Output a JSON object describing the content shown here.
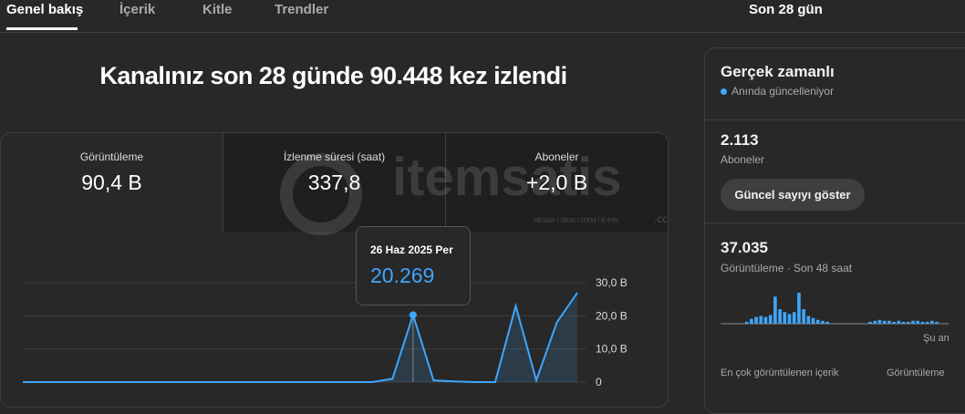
{
  "tabs": [
    "Genel bakış",
    "İçerik",
    "Kitle",
    "Trendler"
  ],
  "period": "Son 28 gün",
  "headline": "Kanalınız son 28 günde 90.448 kez izlendi",
  "watermark": {
    "brand": "itemsatis",
    "tagline": "HESAP / SKIN / ITEM / E-PIN",
    "suffix": ".com"
  },
  "metrics": [
    {
      "label": "Görüntüleme",
      "value": "90,4 B"
    },
    {
      "label": "İzlenme süresi (saat)",
      "value": "337,8"
    },
    {
      "label": "Aboneler",
      "value": "+2,0 B"
    }
  ],
  "tooltip": {
    "date": "26 Haz 2025 Per",
    "value": "20.269"
  },
  "chart_data": {
    "type": "line",
    "color": "#3ea6ff",
    "values": [
      0,
      0,
      0,
      0,
      0,
      0,
      0,
      0,
      0,
      0,
      0,
      0,
      0,
      0,
      0,
      0,
      0,
      0,
      1,
      20.269,
      0.5,
      0.2,
      0,
      0,
      23,
      0.5,
      18,
      27
    ],
    "ylim": [
      0,
      30
    ],
    "yticks": [
      0,
      {
        "value": 10,
        "label": "10,0 B"
      },
      {
        "value": 20,
        "label": "20,0 B"
      },
      {
        "value": 30,
        "label": "30,0 B"
      }
    ],
    "grid": true
  },
  "realtime": {
    "title": "Gerçek zamanlı",
    "status": "Anında güncelleniyor",
    "subscribers": "2.113",
    "subscribers_label": "Aboneler",
    "button": "Güncel sayıyı göster",
    "views": "37.035",
    "views_label": "Görüntüleme · Son 48 saat",
    "now_label": "Şu an",
    "bars": {
      "type": "bar",
      "color": "#3ea6ff",
      "values": [
        0,
        0,
        0,
        0,
        0,
        2,
        5,
        7,
        8,
        7,
        9,
        28,
        15,
        12,
        10,
        12,
        32,
        15,
        8,
        6,
        4,
        3,
        2,
        0,
        0,
        0,
        0,
        0,
        0,
        0,
        0,
        2,
        3,
        4,
        3,
        3,
        2,
        3,
        2,
        2,
        3,
        3,
        2,
        2,
        3,
        2,
        0,
        0
      ]
    },
    "top_content": "En çok görüntülenen içerik",
    "top_content_metric": "Görüntüleme"
  }
}
